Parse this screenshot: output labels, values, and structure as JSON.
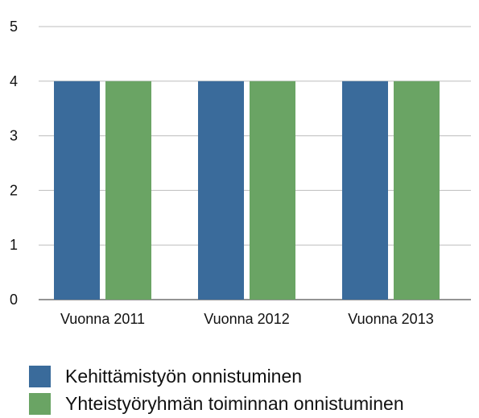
{
  "chart_data": {
    "type": "bar",
    "categories": [
      "Vuonna 2011",
      "Vuonna 2012",
      "Vuonna 2013"
    ],
    "series": [
      {
        "name": "Kehittämistyön onnistuminen",
        "values": [
          4,
          4,
          4
        ],
        "color": "#3a6b9b"
      },
      {
        "name": "Yhteistyöryhmän toiminnan onnistuminen",
        "values": [
          4,
          4,
          4
        ],
        "color": "#6aa464"
      }
    ],
    "yticks": [
      0,
      1,
      2,
      3,
      4,
      5
    ],
    "ylim": [
      0,
      5
    ],
    "grid": true,
    "legend_position": "bottom-left"
  }
}
